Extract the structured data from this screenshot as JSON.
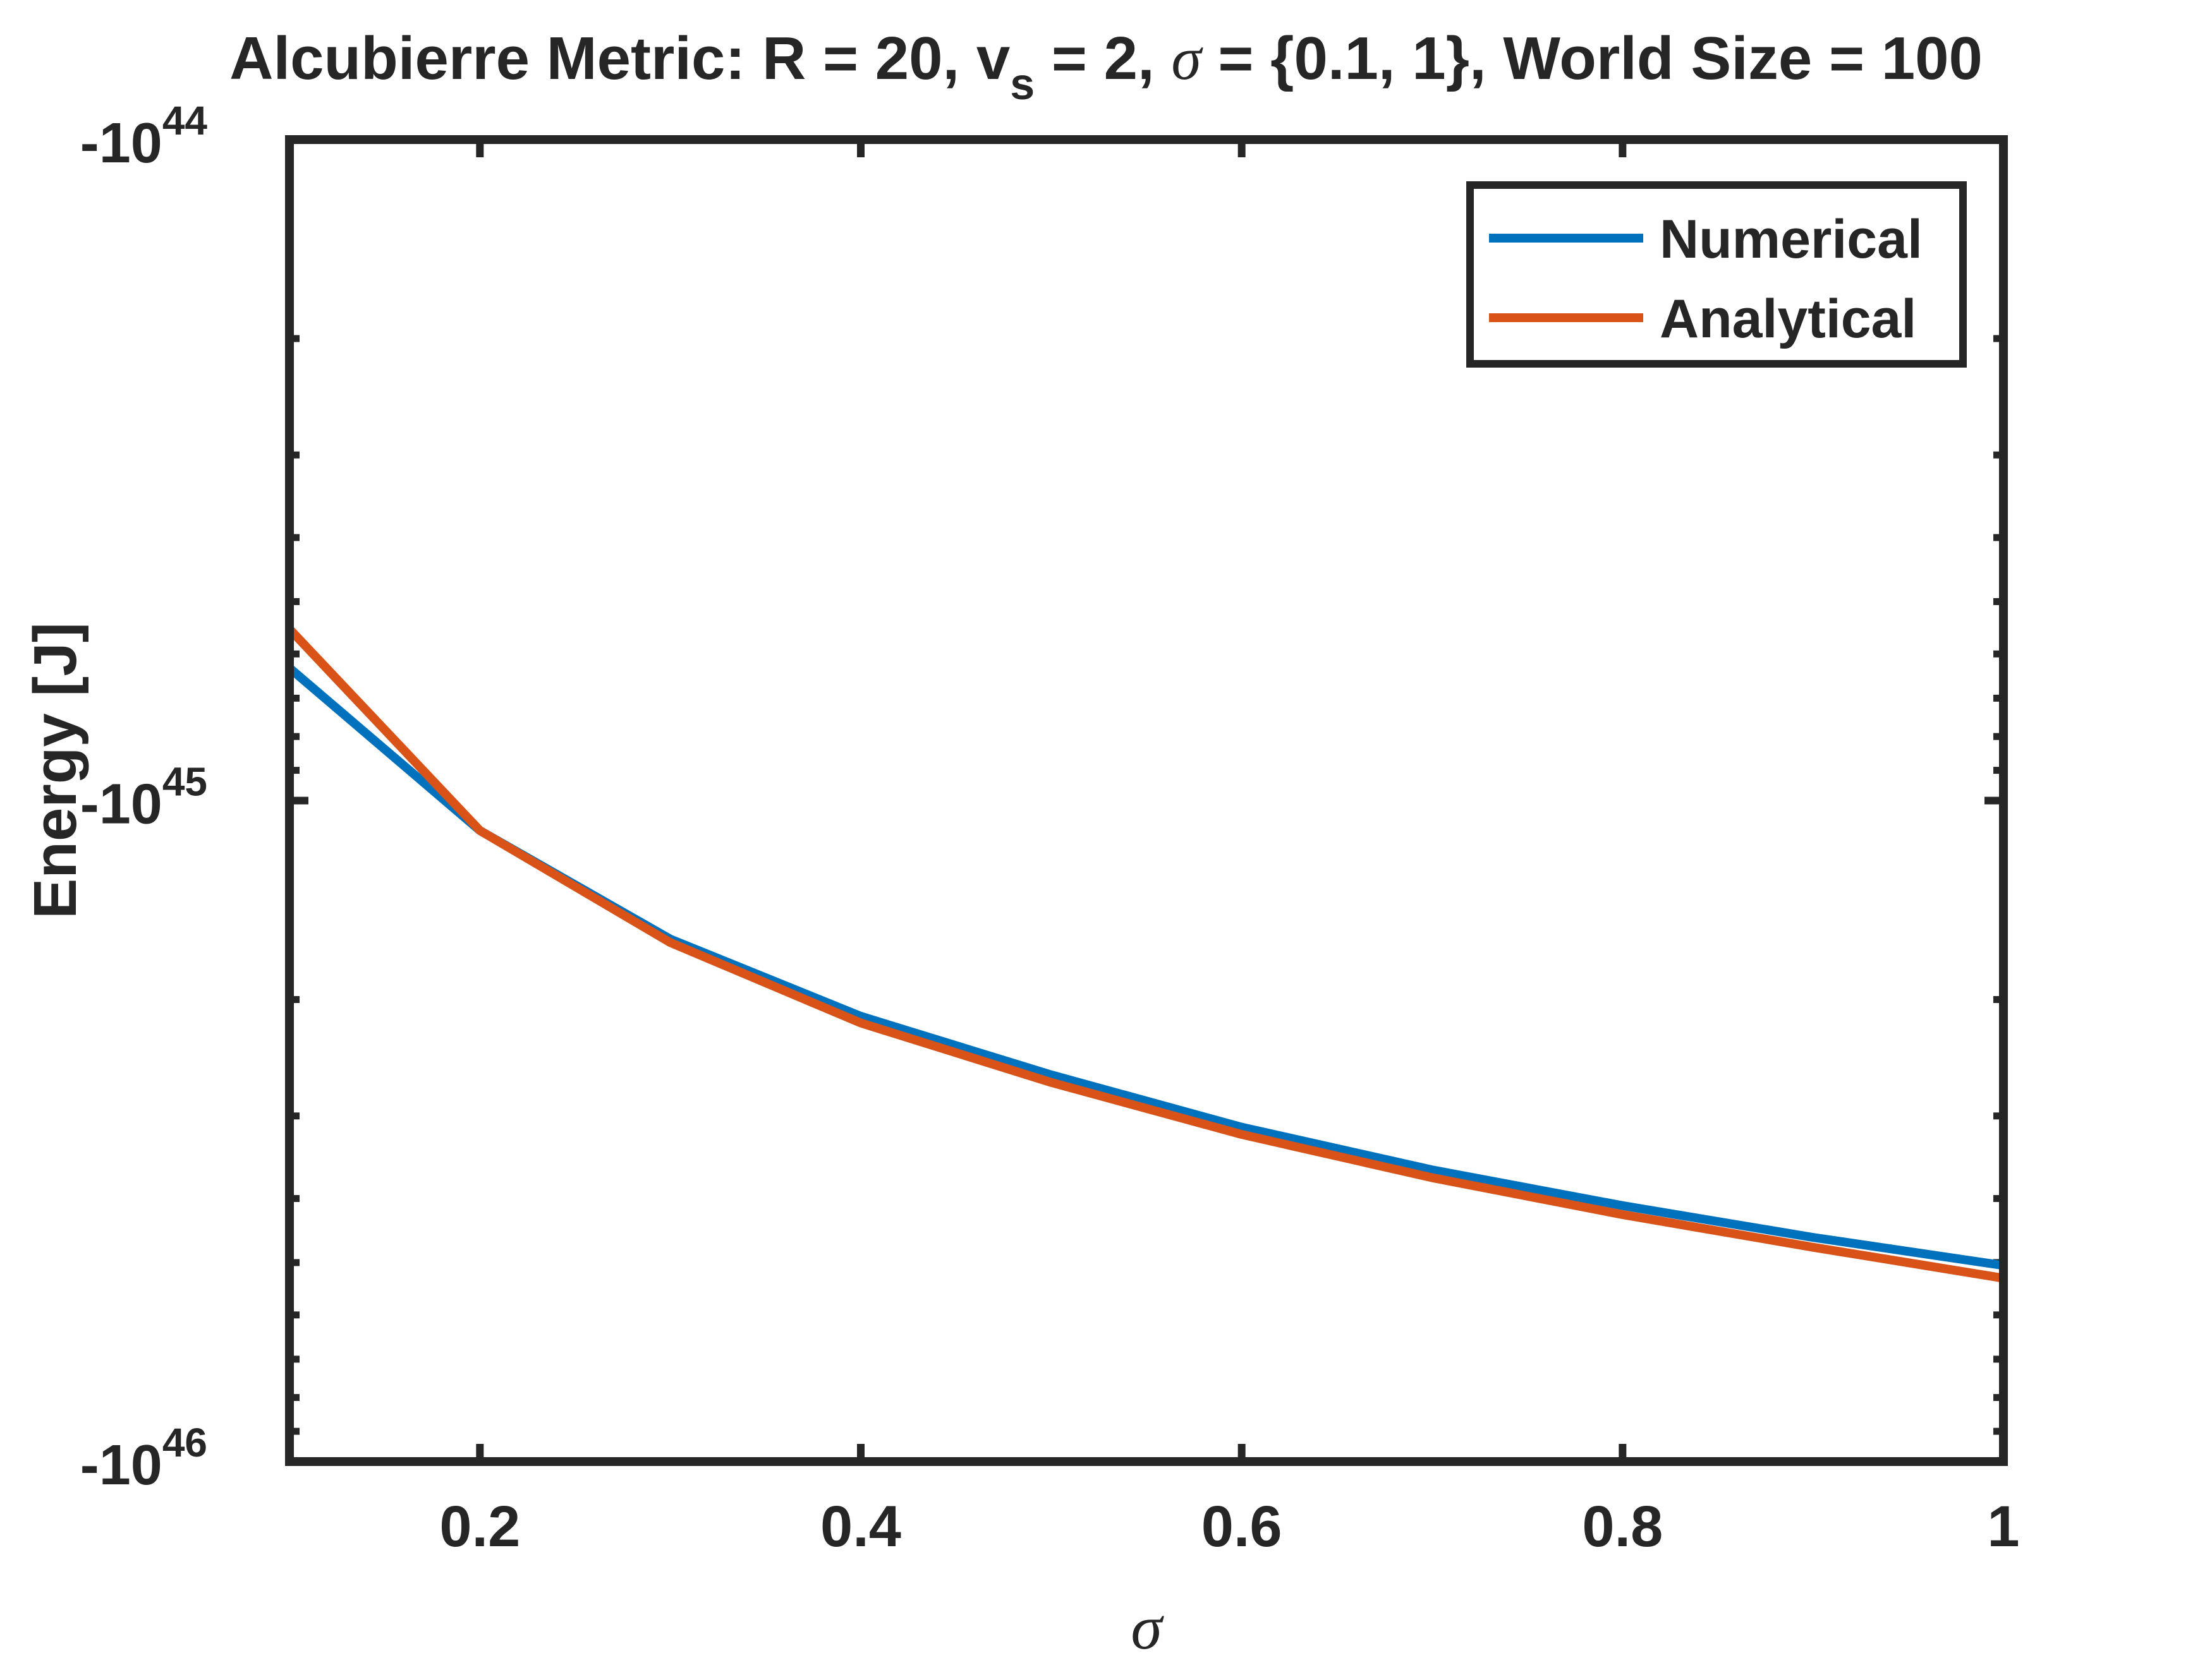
{
  "chart_data": {
    "type": "line",
    "title": {
      "prefix": "Alcubierre Metric: R = 20, v",
      "sub": "s",
      "middle": " = 2, ",
      "symbol": "σ",
      "suffix": " = {0.1, 1}, World Size = 100"
    },
    "xlabel": "σ",
    "ylabel": "Energy [J]",
    "xlim": [
      0.1,
      1
    ],
    "ylim": [
      -1e+44,
      -1e+46
    ],
    "yscale": "log (negative values, magnitude increasing downward)",
    "x_ticks": [
      {
        "value": 0.2,
        "label": "0.2"
      },
      {
        "value": 0.4,
        "label": "0.4"
      },
      {
        "value": 0.6,
        "label": "0.6"
      },
      {
        "value": 0.8,
        "label": "0.8"
      },
      {
        "value": 1,
        "label": "1"
      }
    ],
    "y_ticks": [
      {
        "exp": 44,
        "base": "-10",
        "sup": "44"
      },
      {
        "exp": 45,
        "base": "-10",
        "sup": "45"
      },
      {
        "exp": 46,
        "base": "-10",
        "sup": "46"
      }
    ],
    "x": [
      0.1,
      0.2,
      0.3,
      0.4,
      0.5,
      0.6,
      0.7,
      0.8,
      0.9,
      1.0
    ],
    "series": [
      {
        "name": "Numerical",
        "color": "#0072BD",
        "values": [
          -6.3e+44,
          -1.11e+45,
          -1.62e+45,
          -2.12e+45,
          -2.6e+45,
          -3.12e+45,
          -3.62e+45,
          -4.1e+45,
          -4.58e+45,
          -5.05e+45
        ]
      },
      {
        "name": "Analytical",
        "color": "#D95319",
        "values": [
          -5.5e+44,
          -1.11e+45,
          -1.64e+45,
          -2.17e+45,
          -2.67e+45,
          -3.2e+45,
          -3.72e+45,
          -4.23e+45,
          -4.74e+45,
          -5.28e+45
        ]
      }
    ],
    "grid": false,
    "legend_position": "top-right"
  }
}
